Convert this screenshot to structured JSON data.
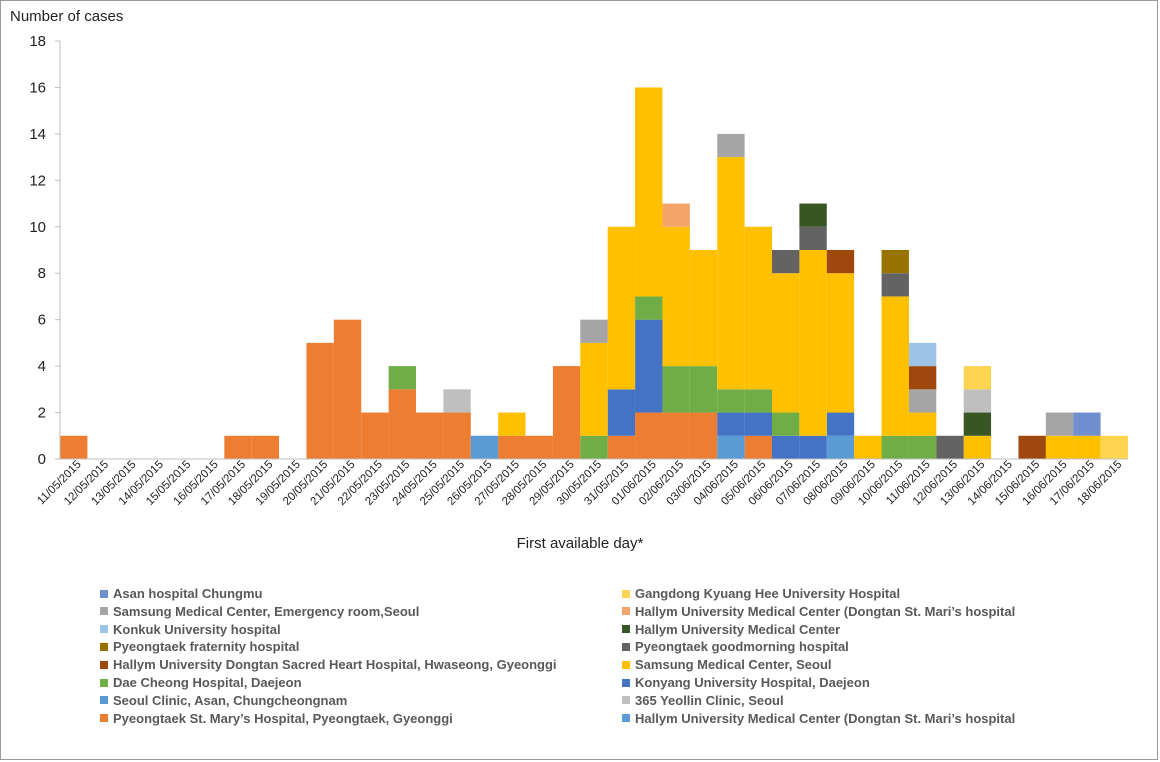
{
  "chart_data": {
    "type": "bar",
    "stacked": true,
    "ylabel": "Number of cases",
    "xlabel": "First available day*",
    "ylim": [
      0,
      18
    ],
    "yticks": [
      0,
      2,
      4,
      6,
      8,
      10,
      12,
      14,
      16,
      18
    ],
    "grid": false,
    "legend_position": "bottom",
    "categories": [
      "11/05/2015",
      "12/05/2015",
      "13/05/2015",
      "14/05/2015",
      "15/05/2015",
      "16/05/2015",
      "17/05/2015",
      "18/05/2015",
      "19/05/2015",
      "20/05/2015",
      "21/05/2015",
      "22/05/2015",
      "23/05/2015",
      "24/05/2015",
      "25/05/2015",
      "26/05/2015",
      "27/05/2015",
      "28/05/2015",
      "29/05/2015",
      "30/05/2015",
      "31/05/2015",
      "01/06/2015",
      "02/06/2015",
      "03/06/2015",
      "04/06/2015",
      "05/06/2015",
      "06/06/2015",
      "07/06/2015",
      "08/06/2015",
      "09/06/2015",
      "10/06/2015",
      "11/06/2015",
      "12/06/2015",
      "13/06/2015",
      "14/06/2015",
      "15/06/2015",
      "16/06/2015",
      "17/06/2015",
      "18/06/2015"
    ],
    "series": [
      {
        "name": "Pyeongtaek St. Mary’s Hospital, Pyeongtaek, Gyeonggi",
        "color": "#ED7D31",
        "values": [
          1,
          0,
          0,
          0,
          0,
          0,
          1,
          1,
          0,
          5,
          6,
          2,
          3,
          2,
          2,
          0,
          1,
          1,
          4,
          0,
          1,
          2,
          2,
          2,
          0,
          1,
          0,
          0,
          0,
          0,
          0,
          0,
          0,
          0,
          0,
          0,
          0,
          0,
          0
        ]
      },
      {
        "name": "Seoul Clinic, Asan, Chungcheongnam",
        "color": "#5B9BD5",
        "values": [
          0,
          0,
          0,
          0,
          0,
          0,
          0,
          0,
          0,
          0,
          0,
          0,
          0,
          0,
          0,
          1,
          0,
          0,
          0,
          0,
          0,
          0,
          0,
          0,
          1,
          0,
          0,
          0,
          1,
          0,
          0,
          0,
          0,
          0,
          0,
          0,
          0,
          0,
          0
        ]
      },
      {
        "name": "Konyang University Hospital, Daejeon",
        "color": "#4472C4",
        "values": [
          0,
          0,
          0,
          0,
          0,
          0,
          0,
          0,
          0,
          0,
          0,
          0,
          0,
          0,
          0,
          0,
          0,
          0,
          0,
          0,
          2,
          4,
          0,
          0,
          1,
          1,
          1,
          1,
          1,
          0,
          0,
          0,
          0,
          0,
          0,
          0,
          0,
          0,
          0
        ]
      },
      {
        "name": "Dae Cheong Hospital, Daejeon",
        "color": "#70AD47",
        "values": [
          0,
          0,
          0,
          0,
          0,
          0,
          0,
          0,
          0,
          0,
          0,
          0,
          1,
          0,
          0,
          0,
          0,
          0,
          0,
          1,
          0,
          1,
          2,
          2,
          1,
          1,
          1,
          0,
          0,
          0,
          1,
          1,
          0,
          0,
          0,
          0,
          0,
          0,
          0
        ]
      },
      {
        "name": "Samsung Medical Center, Seoul",
        "color": "#FFC000",
        "values": [
          0,
          0,
          0,
          0,
          0,
          0,
          0,
          0,
          0,
          0,
          0,
          0,
          0,
          0,
          0,
          0,
          1,
          0,
          0,
          4,
          7,
          9,
          6,
          5,
          10,
          7,
          6,
          8,
          6,
          1,
          6,
          1,
          0,
          1,
          0,
          0,
          1,
          1,
          0
        ],
        "segments_above_others": true
      },
      {
        "name": "Samsung Medical Center, Emergency room,Seoul",
        "color": "#A5A5A5",
        "values": [
          0,
          0,
          0,
          0,
          0,
          0,
          0,
          0,
          0,
          0,
          0,
          0,
          0,
          0,
          0,
          0,
          0,
          0,
          0,
          1,
          0,
          0,
          0,
          0,
          1,
          0,
          0,
          0,
          0,
          0,
          0,
          1,
          0,
          0,
          0,
          0,
          1,
          0,
          0
        ]
      },
      {
        "name": "Hallym University Medical Center (Dongtan St. Mari’s hospital",
        "color": "#F4A469",
        "values": [
          0,
          0,
          0,
          0,
          0,
          0,
          0,
          0,
          0,
          0,
          0,
          0,
          0,
          0,
          0,
          0,
          0,
          0,
          0,
          0,
          0,
          0,
          1,
          0,
          0,
          0,
          0,
          0,
          0,
          0,
          0,
          0,
          0,
          0,
          0,
          0,
          0,
          0,
          0
        ]
      },
      {
        "name": "Pyeongtaek goodmorning hospital",
        "color": "#636363",
        "values": [
          0,
          0,
          0,
          0,
          0,
          0,
          0,
          0,
          0,
          0,
          0,
          0,
          0,
          0,
          0,
          0,
          0,
          0,
          0,
          0,
          0,
          0,
          0,
          0,
          0,
          0,
          1,
          1,
          0,
          0,
          1,
          0,
          1,
          0,
          0,
          0,
          0,
          0,
          0
        ]
      },
      {
        "name": "Hallym University Medical Center",
        "color": "#375623",
        "values": [
          0,
          0,
          0,
          0,
          0,
          0,
          0,
          0,
          0,
          0,
          0,
          0,
          0,
          0,
          0,
          0,
          0,
          0,
          0,
          0,
          0,
          0,
          0,
          0,
          0,
          0,
          0,
          1,
          0,
          0,
          0,
          0,
          0,
          1,
          0,
          0,
          0,
          0,
          0
        ]
      },
      {
        "name": "Hallym University Dongtan Sacred Heart Hospital, Hwaseong, Gyeonggi",
        "color": "#9E480E",
        "values": [
          0,
          0,
          0,
          0,
          0,
          0,
          0,
          0,
          0,
          0,
          0,
          0,
          0,
          0,
          0,
          0,
          0,
          0,
          0,
          0,
          0,
          0,
          0,
          0,
          0,
          0,
          0,
          0,
          1,
          0,
          0,
          1,
          0,
          0,
          0,
          1,
          0,
          0,
          0
        ]
      },
      {
        "name": "Pyeongtaek fraternity hospital",
        "color": "#997300",
        "values": [
          0,
          0,
          0,
          0,
          0,
          0,
          0,
          0,
          0,
          0,
          0,
          0,
          0,
          0,
          0,
          0,
          0,
          0,
          0,
          0,
          0,
          0,
          0,
          0,
          0,
          0,
          0,
          0,
          0,
          0,
          1,
          0,
          0,
          0,
          0,
          0,
          0,
          0,
          0
        ]
      },
      {
        "name": "Konkuk University hospital",
        "color": "#9DC3E6",
        "values": [
          0,
          0,
          0,
          0,
          0,
          0,
          0,
          0,
          0,
          0,
          0,
          0,
          0,
          0,
          0,
          0,
          0,
          0,
          0,
          0,
          0,
          0,
          0,
          0,
          0,
          0,
          0,
          0,
          0,
          0,
          0,
          1,
          0,
          0,
          0,
          0,
          0,
          0,
          0
        ]
      },
      {
        "name": "365 Yeollin Clinic, Seoul",
        "color": "#BFBFBF",
        "values": [
          0,
          0,
          0,
          0,
          0,
          0,
          0,
          0,
          0,
          0,
          0,
          0,
          0,
          0,
          1,
          0,
          0,
          0,
          0,
          0,
          0,
          0,
          0,
          0,
          0,
          0,
          0,
          0,
          0,
          0,
          0,
          0,
          0,
          1,
          0,
          0,
          0,
          0,
          0
        ]
      },
      {
        "name": "Gangdong Kyuang Hee University Hospital",
        "color": "#FFD54F",
        "values": [
          0,
          0,
          0,
          0,
          0,
          0,
          0,
          0,
          0,
          0,
          0,
          0,
          0,
          0,
          0,
          0,
          0,
          0,
          0,
          0,
          0,
          0,
          0,
          0,
          0,
          0,
          0,
          0,
          0,
          0,
          0,
          0,
          0,
          1,
          0,
          0,
          0,
          0,
          1
        ]
      },
      {
        "name": "Asan hospital Chungmu",
        "color": "#6F8FCF",
        "values": [
          0,
          0,
          0,
          0,
          0,
          0,
          0,
          0,
          0,
          0,
          0,
          0,
          0,
          0,
          0,
          0,
          0,
          0,
          0,
          0,
          0,
          0,
          0,
          0,
          0,
          0,
          0,
          0,
          0,
          0,
          0,
          0,
          0,
          0,
          0,
          0,
          0,
          1,
          0
        ]
      }
    ],
    "legend": [
      {
        "label": "Asan hospital Chungmu",
        "color": "#6F8FCF"
      },
      {
        "label": "Gangdong Kyuang Hee University Hospital",
        "color": "#FFD54F"
      },
      {
        "label": "Samsung Medical Center, Emergency room,Seoul",
        "color": "#A5A5A5"
      },
      {
        "label": "Hallym University Medical Center (Dongtan St. Mari’s hospital",
        "color": "#F4A469"
      },
      {
        "label": "Konkuk University hospital",
        "color": "#9DC3E6"
      },
      {
        "label": "Hallym University Medical Center",
        "color": "#375623"
      },
      {
        "label": "Pyeongtaek fraternity hospital",
        "color": "#997300"
      },
      {
        "label": "Pyeongtaek goodmorning hospital",
        "color": "#636363"
      },
      {
        "label": "Hallym University Dongtan Sacred Heart Hospital, Hwaseong, Gyeonggi",
        "color": "#9E480E"
      },
      {
        "label": "Samsung Medical Center, Seoul",
        "color": "#FFC000"
      },
      {
        "label": "Dae Cheong Hospital, Daejeon",
        "color": "#70AD47"
      },
      {
        "label": "Konyang University Hospital, Daejeon",
        "color": "#4472C4"
      },
      {
        "label": "Seoul Clinic, Asan, Chungcheongnam",
        "color": "#5B9BD5"
      },
      {
        "label": "365 Yeollin Clinic, Seoul",
        "color": "#BFBFBF"
      },
      {
        "label": "Pyeongtaek St. Mary’s Hospital, Pyeongtaek, Gyeonggi",
        "color": "#ED7D31"
      },
      {
        "label": " Hallym University Medical Center (Dongtan St. Mari’s hospital",
        "color": "#5B9BD5"
      }
    ]
  }
}
